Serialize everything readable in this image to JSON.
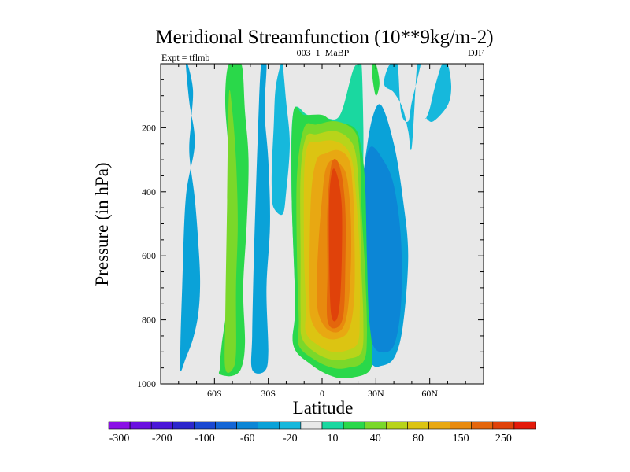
{
  "chart_data": {
    "type": "contour",
    "title": "Meridional Streamfunction (10**9kg/m-2)",
    "subtitle_left": "Expt = tflmb",
    "subtitle_center": "003_1_MaBP",
    "subtitle_right": "DJF",
    "xlabel": "Latitude",
    "ylabel": "Pressure (in hPa)",
    "xlim": [
      -90,
      90
    ],
    "ylim": [
      1000,
      0
    ],
    "x_ticks": [
      {
        "value": -60,
        "label": "60S"
      },
      {
        "value": -30,
        "label": "30S"
      },
      {
        "value": 0,
        "label": "0"
      },
      {
        "value": 30,
        "label": "30N"
      },
      {
        "value": 60,
        "label": "60N"
      }
    ],
    "y_ticks": [
      {
        "value": 200,
        "label": "200"
      },
      {
        "value": 400,
        "label": "400"
      },
      {
        "value": 600,
        "label": "600"
      },
      {
        "value": 800,
        "label": "800"
      },
      {
        "value": 1000,
        "label": "1000"
      }
    ],
    "colorbar": {
      "colors": [
        "#8a10e6",
        "#6a10e0",
        "#4a16d8",
        "#2c26cc",
        "#1a48d2",
        "#1466d6",
        "#0c86d6",
        "#0aa2d8",
        "#16b8dc",
        "#e8e8e8",
        "#1ad8a0",
        "#2ad84a",
        "#7ad82a",
        "#b8d41a",
        "#dcc412",
        "#e8a812",
        "#e88a0e",
        "#e4660c",
        "#e0420a",
        "#e41a0a"
      ],
      "labels": [
        "-300",
        "-200",
        "-100",
        "-60",
        "-20",
        "10",
        "40",
        "80",
        "150",
        "250"
      ],
      "label_bins": [
        1,
        3,
        5,
        7,
        9,
        11,
        13,
        15,
        17,
        19
      ],
      "levels": [
        -300,
        -250,
        -200,
        -150,
        -100,
        -80,
        -60,
        -40,
        -20,
        -10,
        10,
        20,
        40,
        60,
        80,
        100,
        150,
        200,
        250
      ]
    },
    "regions": [
      {
        "name": "sh-high-lat-cell",
        "level_index": 7,
        "lat": [
          -79,
          -76,
          -72,
          -69,
          -68,
          -69,
          -71,
          -74,
          -73,
          -72,
          -75,
          -76,
          -74,
          -71,
          -76,
          -78,
          -79
        ],
        "p": [
          960,
          920,
          860,
          780,
          680,
          560,
          420,
          280,
          180,
          80,
          0,
          0,
          120,
          250,
          420,
          700,
          880
        ]
      },
      {
        "name": "sh-mid-lat-green",
        "level_index": 11,
        "lat": [
          -57,
          -50,
          -45,
          -43,
          -44,
          -42,
          -41,
          -43,
          -45,
          -52,
          -54,
          -52,
          -53,
          -52,
          -56,
          -57
        ],
        "p": [
          970,
          975,
          950,
          870,
          700,
          500,
          300,
          150,
          0,
          0,
          120,
          300,
          500,
          700,
          880,
          950
        ]
      },
      {
        "name": "sh-mid-lat-green-core",
        "level_index": 12,
        "lat": [
          -54,
          -50,
          -48,
          -48,
          -47,
          -48,
          -50,
          -52,
          -53,
          -54
        ],
        "p": [
          950,
          955,
          900,
          700,
          500,
          300,
          150,
          100,
          450,
          800
        ]
      },
      {
        "name": "sh-subtrop-band-a",
        "level_index": 7,
        "lat": [
          -39,
          -32,
          -30,
          -31,
          -29,
          -30,
          -32,
          -31,
          -34,
          -36,
          -38,
          -39
        ],
        "p": [
          955,
          960,
          900,
          700,
          500,
          300,
          150,
          0,
          0,
          250,
          600,
          850
        ]
      },
      {
        "name": "sh-subtrop-band-b",
        "level_index": 8,
        "lat": [
          -27,
          -22,
          -20,
          -18,
          -20,
          -22,
          -23,
          -26,
          -27,
          -28,
          -28
        ],
        "p": [
          450,
          470,
          400,
          250,
          120,
          0,
          0,
          80,
          200,
          320,
          400
        ]
      },
      {
        "name": "nh-cell-blue",
        "level_index": 7,
        "lat": [
          18,
          23,
          28,
          32,
          40,
          45,
          48,
          45,
          40,
          33,
          28,
          24,
          20,
          18
        ],
        "p": [
          800,
          900,
          940,
          945,
          920,
          820,
          600,
          420,
          250,
          130,
          170,
          300,
          500,
          700
        ]
      },
      {
        "name": "nh-cell-blue-core",
        "level_index": 6,
        "lat": [
          22,
          27,
          32,
          40,
          44,
          44,
          40,
          34,
          27,
          23,
          22
        ],
        "p": [
          750,
          860,
          900,
          880,
          750,
          550,
          380,
          300,
          260,
          350,
          550
        ]
      },
      {
        "name": "nh-upper-band",
        "level_index": 8,
        "lat": [
          35,
          40,
          45,
          48,
          50,
          53,
          55,
          50,
          48,
          44,
          42,
          38,
          35
        ],
        "p": [
          70,
          90,
          140,
          210,
          260,
          0,
          0,
          120,
          180,
          150,
          0,
          0,
          40
        ]
      },
      {
        "name": "nh-upper-band-2",
        "level_index": 8,
        "lat": [
          58,
          62,
          70,
          72,
          70,
          67,
          63,
          60,
          58
        ],
        "p": [
          170,
          180,
          130,
          70,
          0,
          0,
          70,
          140,
          170
        ]
      },
      {
        "name": "nh-sliver",
        "level_index": 11,
        "lat": [
          28,
          30,
          32,
          30,
          28
        ],
        "p": [
          40,
          100,
          60,
          0,
          0
        ]
      },
      {
        "name": "hadley-10",
        "level_index": 10,
        "lat": [
          -16,
          -6,
          6,
          14,
          26,
          28,
          25,
          24,
          23,
          23,
          22,
          20,
          17,
          10,
          2,
          -8,
          -16,
          -17,
          -15
        ],
        "p": [
          875,
          935,
          970,
          980,
          960,
          900,
          780,
          600,
          380,
          200,
          0,
          0,
          25,
          160,
          170,
          160,
          150,
          400,
          750
        ]
      },
      {
        "name": "hadley-20",
        "level_index": 11,
        "lat": [
          -16,
          -6,
          5,
          14,
          26,
          28,
          26,
          25,
          24,
          22,
          18,
          6,
          0,
          -10,
          -16,
          -17,
          -15
        ],
        "p": [
          880,
          940,
          975,
          982,
          962,
          900,
          780,
          600,
          380,
          270,
          200,
          180,
          160,
          160,
          150,
          400,
          750
        ]
      },
      {
        "name": "hadley-40",
        "level_index": 12,
        "lat": [
          -13,
          -4,
          6,
          14,
          23,
          25,
          24,
          22,
          21,
          18,
          8,
          -3,
          -10,
          -14,
          -14,
          -13
        ],
        "p": [
          880,
          925,
          950,
          950,
          930,
          850,
          650,
          450,
          280,
          210,
          180,
          190,
          200,
          350,
          600,
          800
        ]
      },
      {
        "name": "hadley-60",
        "level_index": 13,
        "lat": [
          -11,
          -3,
          6,
          14,
          22,
          23,
          22,
          21,
          19,
          15,
          7,
          -3,
          -9,
          -12,
          -12,
          -12
        ],
        "p": [
          860,
          905,
          925,
          922,
          900,
          800,
          650,
          450,
          290,
          235,
          210,
          220,
          230,
          350,
          600,
          780
        ]
      },
      {
        "name": "hadley-80",
        "level_index": 14,
        "lat": [
          -9,
          -2,
          6,
          14,
          20,
          21,
          21,
          19,
          17,
          13,
          6,
          -3,
          -8,
          -10,
          -10,
          -9
        ],
        "p": [
          840,
          880,
          900,
          895,
          870,
          780,
          600,
          420,
          310,
          260,
          240,
          245,
          255,
          350,
          600,
          760
        ]
      },
      {
        "name": "hadley-100",
        "level_index": 15,
        "lat": [
          -6,
          0,
          8,
          15,
          18,
          18,
          17,
          15,
          9,
          2,
          -3,
          -6,
          -7,
          -7
        ],
        "p": [
          800,
          850,
          860,
          830,
          720,
          520,
          380,
          300,
          270,
          280,
          300,
          400,
          600,
          720
        ]
      },
      {
        "name": "hadley-150",
        "level_index": 16,
        "lat": [
          -2,
          3,
          10,
          14,
          16,
          16,
          14,
          11,
          6,
          2,
          0,
          -2,
          -3
        ],
        "p": [
          780,
          830,
          835,
          780,
          640,
          480,
          360,
          320,
          300,
          330,
          420,
          560,
          700
        ]
      },
      {
        "name": "hadley-200",
        "level_index": 17,
        "lat": [
          3,
          8,
          12,
          13,
          13,
          11,
          8,
          5,
          3,
          3
        ],
        "p": [
          800,
          825,
          780,
          620,
          460,
          350,
          300,
          320,
          450,
          650
        ]
      },
      {
        "name": "hadley-250",
        "level_index": 18,
        "lat": [
          5,
          8,
          10,
          11,
          11,
          9,
          6,
          4,
          4
        ],
        "p": [
          780,
          800,
          740,
          600,
          450,
          360,
          330,
          420,
          620
        ]
      }
    ]
  }
}
